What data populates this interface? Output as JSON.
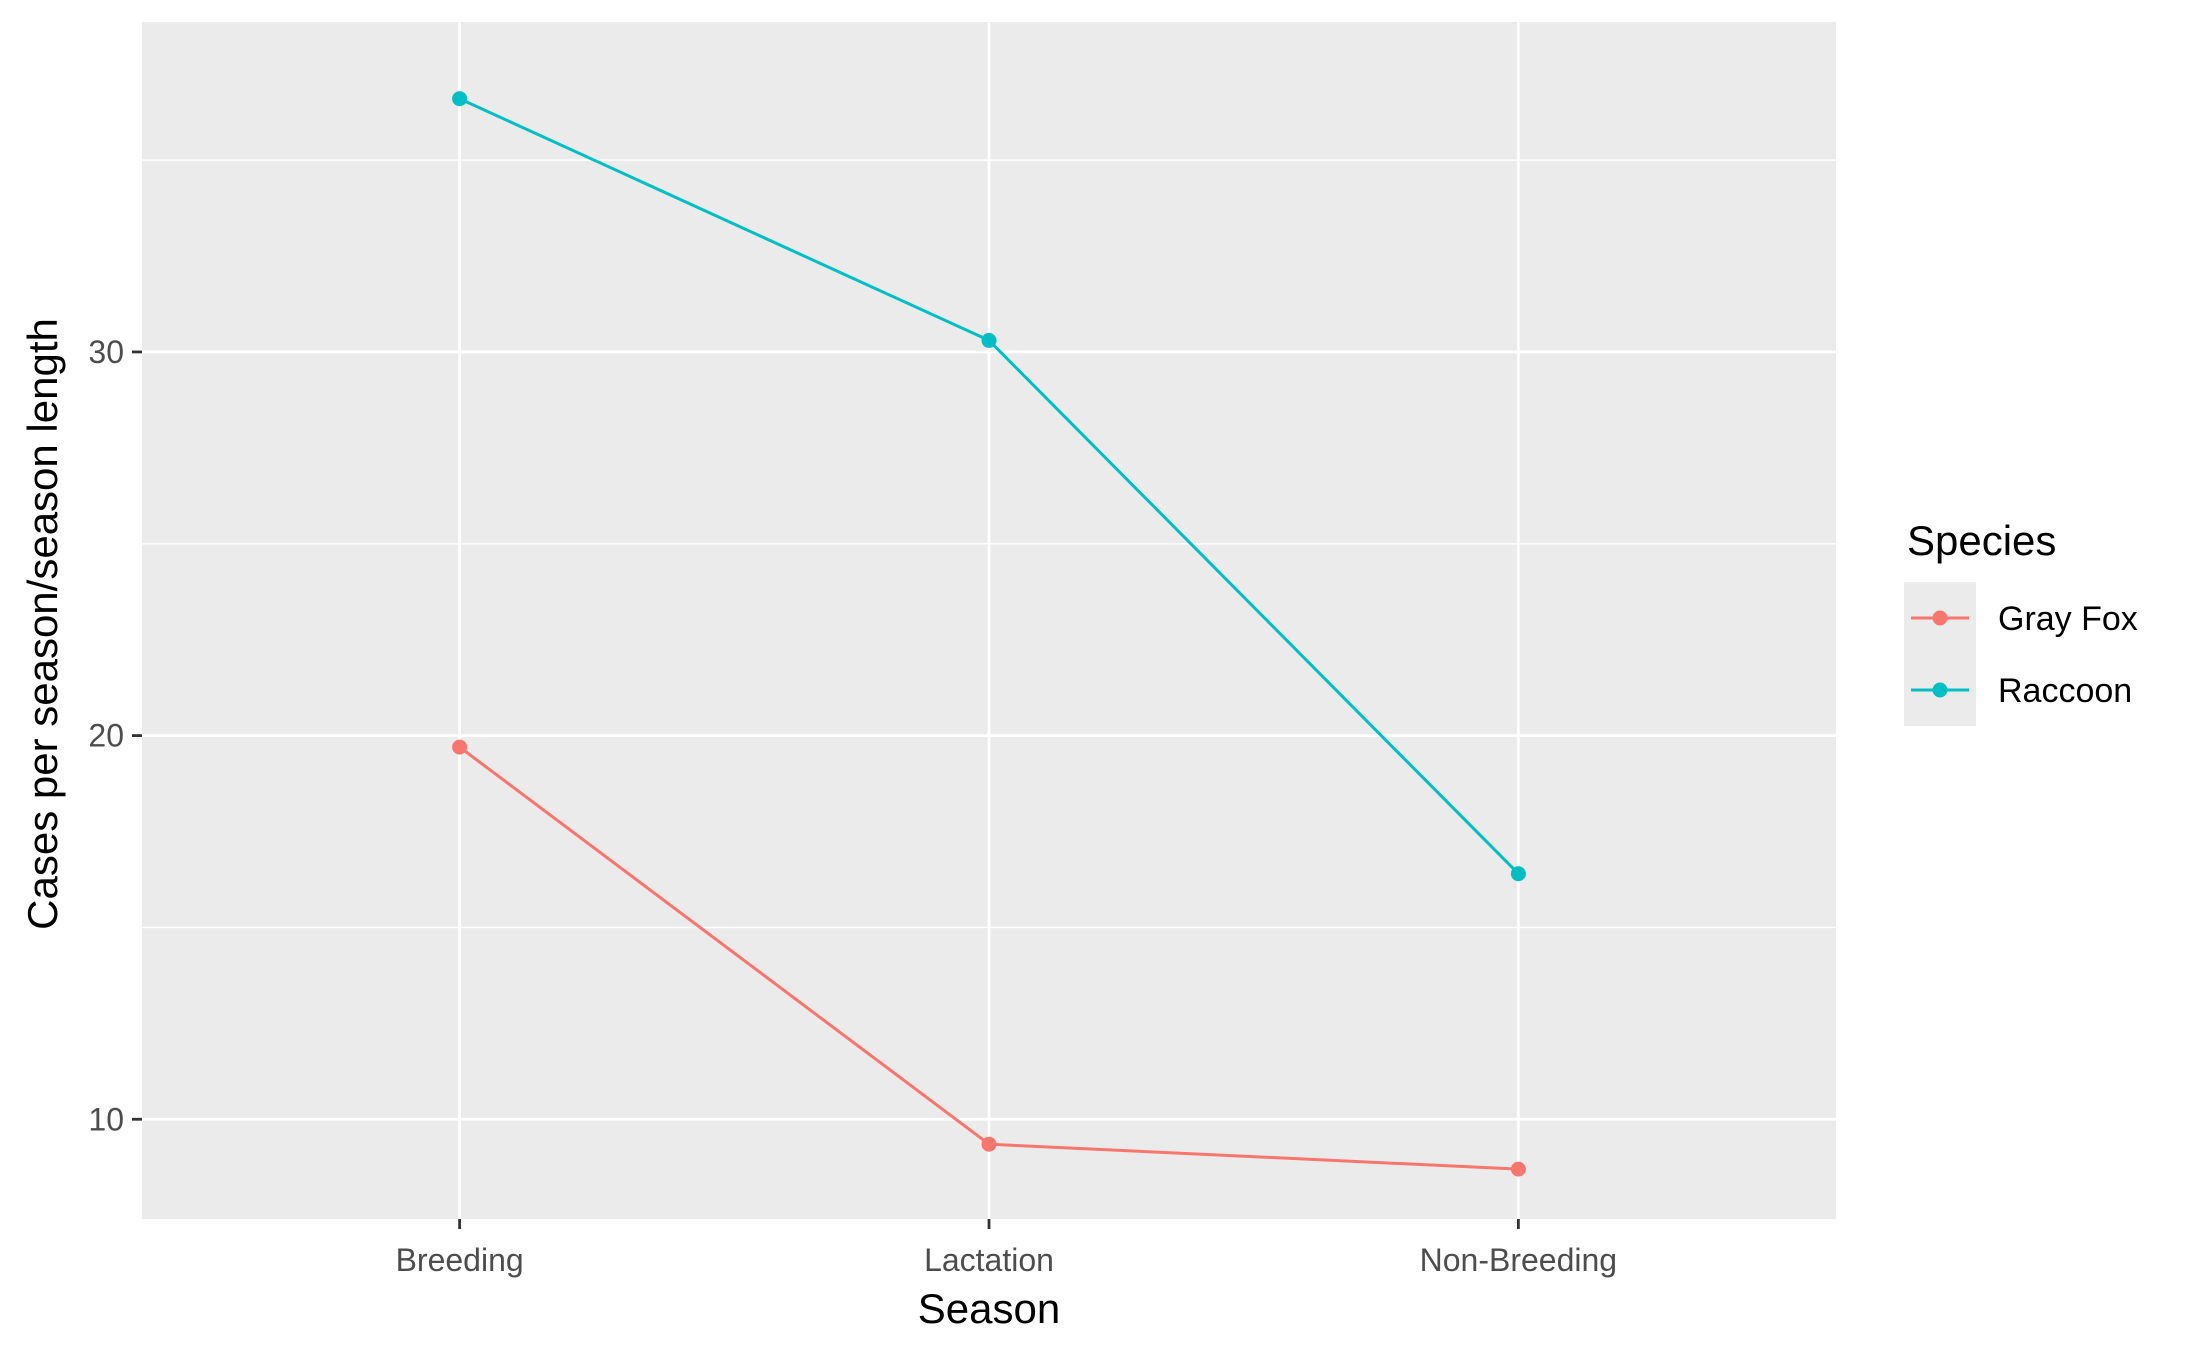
{
  "chart_data": {
    "type": "line",
    "title": "",
    "xlabel": "Season",
    "ylabel": "Cases per season/season length",
    "categories": [
      "Breeding",
      "Lactation",
      "Non-Breeding"
    ],
    "ylim": [
      7.4,
      38.6
    ],
    "yticks": [
      10,
      20,
      30
    ],
    "ytick_labels": [
      "10",
      "20",
      "30"
    ],
    "grid": true,
    "legend": {
      "title": "Species",
      "position": "right"
    },
    "series": [
      {
        "name": "Gray Fox",
        "values": [
          19.7,
          9.35,
          8.7
        ],
        "color": "#F8766D"
      },
      {
        "name": "Raccoon",
        "values": [
          36.6,
          30.3,
          16.4
        ],
        "color": "#00BFC4"
      }
    ]
  },
  "colors": {
    "panel_background": "#EBEBEB",
    "grid_major": "#FFFFFF",
    "grid_minor": "#F7F7F7",
    "legend_key_background": "#EBEBEB"
  }
}
